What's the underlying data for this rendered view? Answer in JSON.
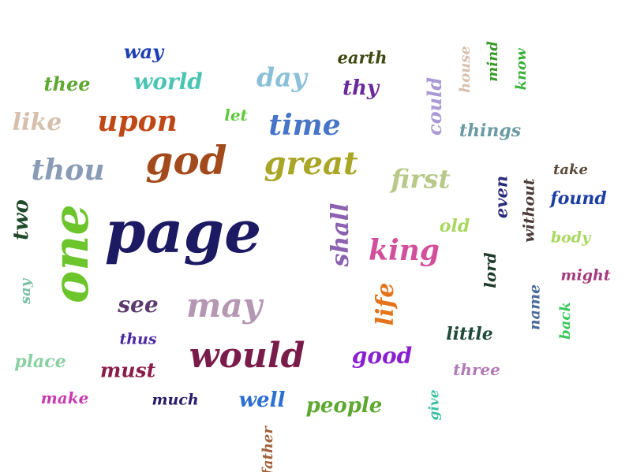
{
  "words": [
    {
      "id": "page",
      "text": "page",
      "color": "#1b1a63"
    },
    {
      "id": "one",
      "text": "one",
      "color": "#6bc52b",
      "vertical": true
    },
    {
      "id": "god",
      "text": "god",
      "color": "#a34a1c"
    },
    {
      "id": "great",
      "text": "great",
      "color": "#a9a525"
    },
    {
      "id": "would",
      "text": "would",
      "color": "#7a1c4a"
    },
    {
      "id": "may",
      "text": "may",
      "color": "#b597b3"
    },
    {
      "id": "king",
      "text": "king",
      "color": "#d2509b"
    },
    {
      "id": "thou",
      "text": "thou",
      "color": "#8a9bb6"
    },
    {
      "id": "upon",
      "text": "upon",
      "color": "#c04816"
    },
    {
      "id": "time",
      "text": "time",
      "color": "#4674c8"
    },
    {
      "id": "first",
      "text": "first",
      "color": "#b8c98a"
    },
    {
      "id": "shall",
      "text": "shall",
      "color": "#8b61b0",
      "vertical": true
    },
    {
      "id": "life",
      "text": "life",
      "color": "#e5731a",
      "vertical": true
    },
    {
      "id": "day",
      "text": "day",
      "color": "#8ac0d8"
    },
    {
      "id": "world",
      "text": "world",
      "color": "#4cc4b4"
    },
    {
      "id": "like",
      "text": "like",
      "color": "#d6bfac"
    },
    {
      "id": "see",
      "text": "see",
      "color": "#5c3a6e"
    },
    {
      "id": "good",
      "text": "good",
      "color": "#8a1fd1"
    },
    {
      "id": "must",
      "text": "must",
      "color": "#8a1c4a"
    },
    {
      "id": "people",
      "text": "people",
      "color": "#5ea832"
    },
    {
      "id": "well",
      "text": "well",
      "color": "#2b6fd2"
    },
    {
      "id": "thy",
      "text": "thy",
      "color": "#6b2a9a"
    },
    {
      "id": "two",
      "text": "two",
      "color": "#1f4a2b",
      "vertical": true
    },
    {
      "id": "could",
      "text": "could",
      "color": "#a99ad6",
      "vertical": true
    },
    {
      "id": "things",
      "text": "things",
      "color": "#6b9aa3"
    },
    {
      "id": "found",
      "text": "found",
      "color": "#1c3fa3"
    },
    {
      "id": "even",
      "text": "even",
      "color": "#2a2a7a",
      "vertical": true
    },
    {
      "id": "without",
      "text": "without",
      "color": "#4a3a3a",
      "vertical": true
    },
    {
      "id": "little",
      "text": "little",
      "color": "#1f4a3a"
    },
    {
      "id": "three",
      "text": "three",
      "color": "#b27ab6"
    },
    {
      "id": "thee",
      "text": "thee",
      "color": "#5ea832"
    },
    {
      "id": "way",
      "text": "way",
      "color": "#1c3fb3"
    },
    {
      "id": "earth",
      "text": "earth",
      "color": "#3f4a12"
    },
    {
      "id": "old",
      "text": "old",
      "color": "#a8d860"
    },
    {
      "id": "place",
      "text": "place",
      "color": "#8ad0a3"
    },
    {
      "id": "make",
      "text": "make",
      "color": "#c93ab0"
    },
    {
      "id": "much",
      "text": "much",
      "color": "#2a1a6a"
    },
    {
      "id": "thus",
      "text": "thus",
      "color": "#4a2aa3"
    },
    {
      "id": "lord",
      "text": "lord",
      "color": "#1f3a2a",
      "vertical": true
    },
    {
      "id": "name",
      "text": "name",
      "color": "#4a6a9a",
      "vertical": true
    },
    {
      "id": "might",
      "text": "might",
      "color": "#a33a7a"
    },
    {
      "id": "body",
      "text": "body",
      "color": "#a8d860"
    },
    {
      "id": "take",
      "text": "take",
      "color": "#5a4a3a"
    },
    {
      "id": "let",
      "text": "let",
      "color": "#5ec83a"
    },
    {
      "id": "say",
      "text": "say",
      "color": "#7ac0a3",
      "vertical": true
    },
    {
      "id": "back",
      "text": "back",
      "color": "#3ac85a",
      "vertical": true
    },
    {
      "id": "give",
      "text": "give",
      "color": "#3ac0a3",
      "vertical": true
    },
    {
      "id": "house",
      "text": "house",
      "color": "#d6bfac",
      "vertical": true
    },
    {
      "id": "mind",
      "text": "mind",
      "color": "#3a9a2a",
      "vertical": true
    },
    {
      "id": "know",
      "text": "know",
      "color": "#3ab03a",
      "vertical": true
    },
    {
      "id": "father",
      "text": "father",
      "color": "#a3603a",
      "vertical": true
    }
  ]
}
